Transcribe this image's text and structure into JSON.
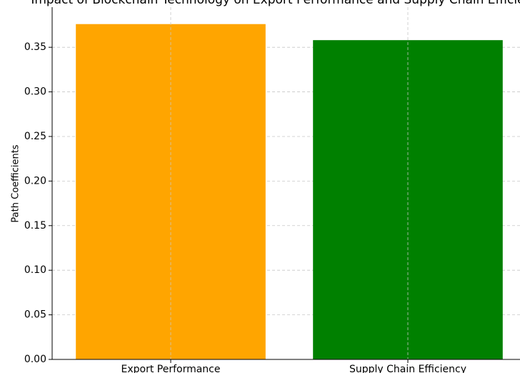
{
  "chart_data": {
    "type": "bar",
    "title": "Impact of Blockchain Technology on Export Performance and Supply Chain Efficiency",
    "ylabel": "Path Coefficients",
    "categories": [
      "Export Performance",
      "Supply Chain Efficiency"
    ],
    "values": [
      0.376,
      0.358
    ],
    "colors": [
      "#ffa500",
      "#008000"
    ],
    "ylim": [
      0,
      0.395
    ],
    "yticks": [
      {
        "value": 0,
        "label": "0.00"
      },
      {
        "value": 0.05,
        "label": "0.05"
      },
      {
        "value": 0.1,
        "label": "0.10"
      },
      {
        "value": 0.15,
        "label": "0.15"
      },
      {
        "value": 0.2,
        "label": "0.20"
      },
      {
        "value": 0.25,
        "label": "0.25"
      },
      {
        "value": 0.3,
        "label": "0.30"
      },
      {
        "value": 0.35,
        "label": "0.35"
      }
    ],
    "grid": true
  }
}
